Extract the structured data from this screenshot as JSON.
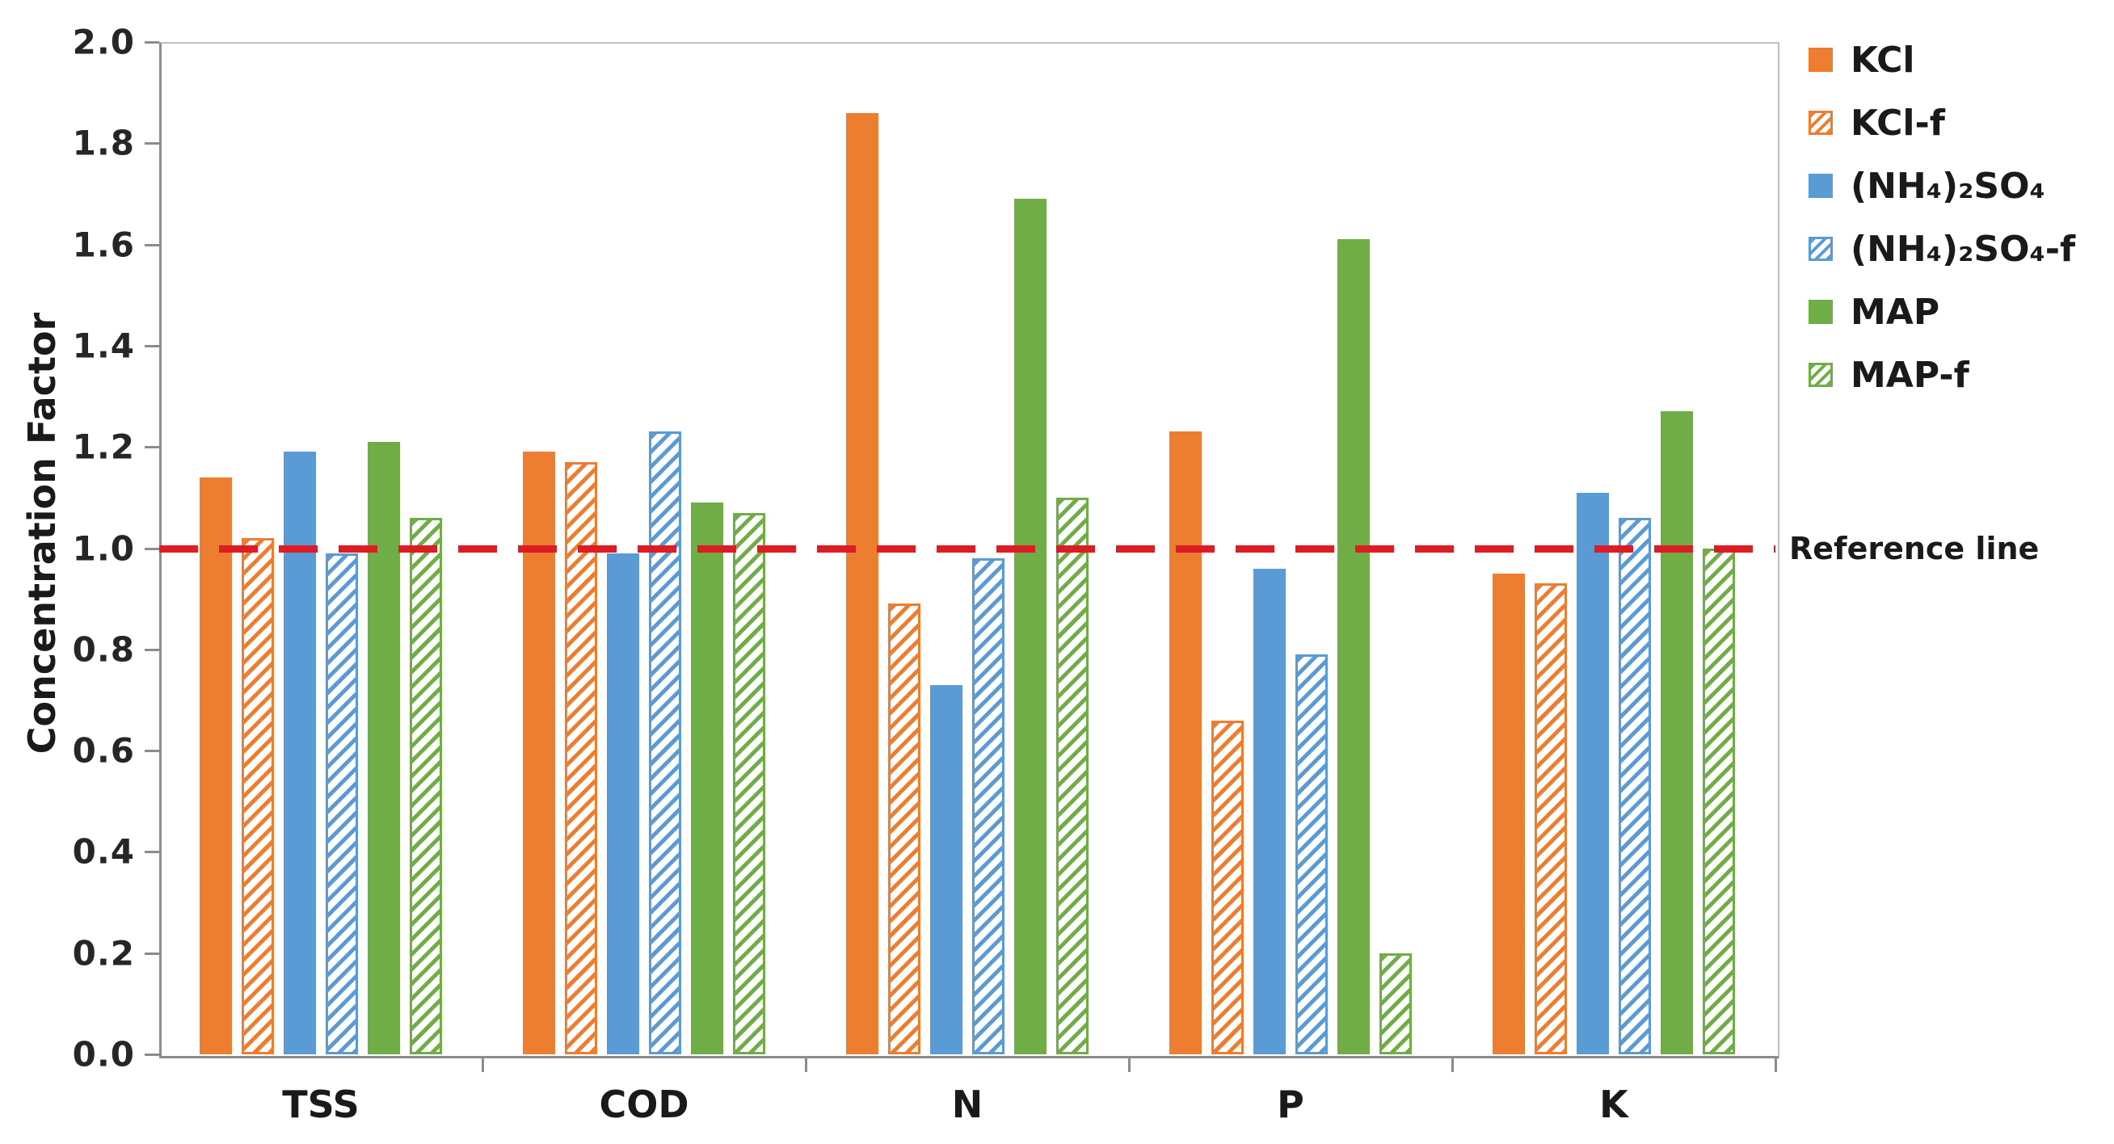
{
  "chart_data": {
    "type": "bar",
    "title": "",
    "ylabel": "Concentration Factor",
    "xlabel": "",
    "ylim": [
      0.0,
      2.0
    ],
    "ytick_labels": [
      "0.0",
      "0.2",
      "0.4",
      "0.6",
      "0.8",
      "1.0",
      "1.2",
      "1.4",
      "1.6",
      "1.8",
      "2.0"
    ],
    "categories": [
      "TSS",
      "COD",
      "N",
      "P",
      "K"
    ],
    "series": [
      {
        "name": "KCl",
        "fill": "solid",
        "color": "#ED7D31",
        "values": [
          1.14,
          1.19,
          1.86,
          1.23,
          0.95
        ]
      },
      {
        "name": "KCl-f",
        "fill": "hatch",
        "color": "#ED7D31",
        "values": [
          1.02,
          1.17,
          0.89,
          0.66,
          0.93
        ]
      },
      {
        "name": "(NH₄)₂SO₄",
        "fill": "solid",
        "color": "#5B9BD5",
        "values": [
          1.19,
          0.99,
          0.73,
          0.96,
          1.11
        ]
      },
      {
        "name": "(NH₄)₂SO₄-f",
        "fill": "hatch",
        "color": "#5B9BD5",
        "values": [
          0.99,
          1.23,
          0.98,
          0.79,
          1.06
        ]
      },
      {
        "name": "MAP",
        "fill": "solid",
        "color": "#70AD47",
        "values": [
          1.21,
          1.09,
          1.69,
          1.61,
          1.27
        ]
      },
      {
        "name": "MAP-f",
        "fill": "hatch",
        "color": "#70AD47",
        "values": [
          1.06,
          1.07,
          1.1,
          0.2,
          1.0
        ]
      }
    ],
    "reference_line": {
      "value": 1.0,
      "label": "Reference line",
      "color": "#DD1D23",
      "style": "dashed"
    },
    "legend_position": "right-top",
    "grid": false
  }
}
